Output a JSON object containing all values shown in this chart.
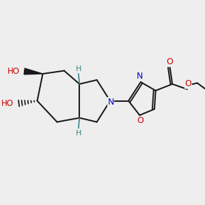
{
  "bg_color": "#eeeeee",
  "bond_color": "#1a1a1a",
  "N_color": "#0000cc",
  "O_color": "#cc0000",
  "H_color": "#3a8080",
  "figsize": [
    3.0,
    3.0
  ],
  "dpi": 100,
  "xlim": [
    0,
    10
  ],
  "ylim": [
    0,
    10
  ]
}
